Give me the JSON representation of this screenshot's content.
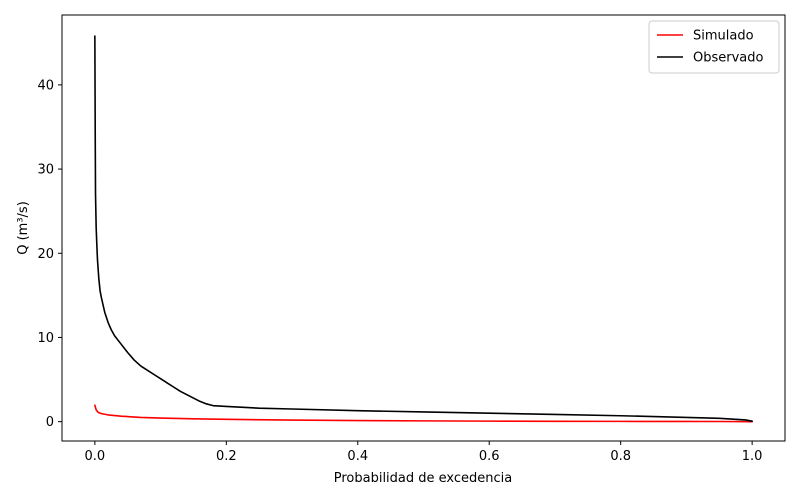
{
  "chart_data": {
    "type": "line",
    "title": "",
    "xlabel": "Probabilidad de excedencia",
    "ylabel": "Q (m³/s)",
    "xlim": [
      -0.05,
      1.05
    ],
    "ylim": [
      -2.3,
      48.3
    ],
    "xticks": [
      0.0,
      0.2,
      0.4,
      0.6,
      0.8,
      1.0
    ],
    "xtick_labels": [
      "0.0",
      "0.2",
      "0.4",
      "0.6",
      "0.8",
      "1.0"
    ],
    "yticks": [
      0,
      10,
      20,
      30,
      40
    ],
    "ytick_labels": [
      "0",
      "10",
      "20",
      "30",
      "40"
    ],
    "grid": false,
    "legend_position": "top-right",
    "series": [
      {
        "name": "Simulado",
        "color": "#ff0000",
        "x": [
          0.0,
          0.002,
          0.005,
          0.01,
          0.02,
          0.04,
          0.07,
          0.1,
          0.15,
          0.2,
          0.3,
          0.4,
          0.5,
          0.6,
          0.7,
          0.8,
          0.9,
          0.95,
          1.0
        ],
        "y": [
          1.95,
          1.4,
          1.1,
          0.95,
          0.8,
          0.65,
          0.5,
          0.42,
          0.33,
          0.27,
          0.19,
          0.13,
          0.09,
          0.06,
          0.04,
          0.03,
          0.02,
          0.015,
          0.0
        ]
      },
      {
        "name": "Observado",
        "color": "#000000",
        "x": [
          0.0,
          0.0005,
          0.001,
          0.002,
          0.003,
          0.004,
          0.006,
          0.008,
          0.01,
          0.015,
          0.02,
          0.025,
          0.03,
          0.04,
          0.05,
          0.06,
          0.07,
          0.08,
          0.09,
          0.1,
          0.11,
          0.12,
          0.13,
          0.14,
          0.15,
          0.16,
          0.17,
          0.18,
          0.2,
          0.25,
          0.3,
          0.4,
          0.5,
          0.6,
          0.7,
          0.8,
          0.9,
          0.95,
          0.99,
          1.0
        ],
        "y": [
          45.8,
          35.0,
          27.0,
          23.0,
          21.0,
          19.2,
          17.0,
          15.5,
          14.7,
          13.0,
          11.8,
          10.9,
          10.2,
          9.2,
          8.2,
          7.3,
          6.6,
          6.1,
          5.6,
          5.1,
          4.6,
          4.1,
          3.6,
          3.2,
          2.8,
          2.4,
          2.1,
          1.9,
          1.8,
          1.6,
          1.5,
          1.3,
          1.15,
          1.0,
          0.85,
          0.7,
          0.5,
          0.4,
          0.2,
          0.05
        ]
      }
    ]
  }
}
